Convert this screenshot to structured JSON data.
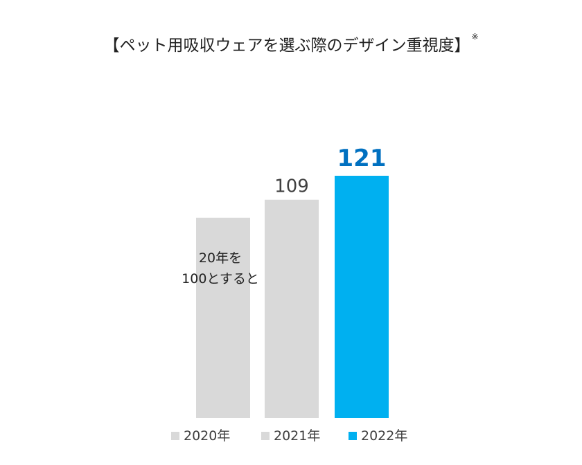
{
  "chart_data": {
    "type": "bar",
    "title": "【ペット用吸収ウェアを選ぶ際のデザイン重視度】",
    "title_note": "※",
    "categories": [
      "2020年",
      "2021年",
      "2022年"
    ],
    "values": [
      100,
      109,
      121
    ],
    "data_labels": [
      "",
      "109",
      "121"
    ],
    "annotation": [
      "20年を",
      "100とすると"
    ],
    "xlabel": "",
    "ylabel": "",
    "ylim": [
      0,
      121
    ],
    "grid": false,
    "legend": "bottom",
    "colors": [
      "#d9d9d9",
      "#d9d9d9",
      "#00b0f0"
    ],
    "label_colors": [
      "#404040",
      "#404040",
      "#0070c0"
    ],
    "legend_entries": [
      "2020年",
      "2021年",
      "2022年"
    ]
  }
}
